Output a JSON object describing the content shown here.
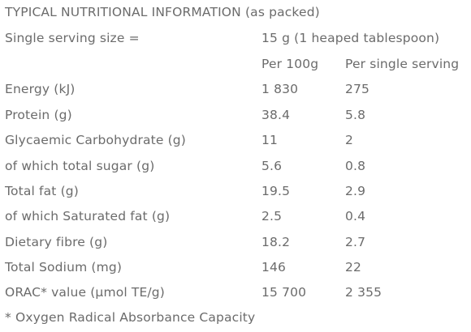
{
  "title": "TYPICAL NUTRITIONAL INFORMATION (as packed)",
  "serving": {
    "label": "Single serving size =",
    "value": "15 g (1 heaped tablespoon)"
  },
  "columns": {
    "per_100g": "Per 100g",
    "per_serving": "Per single serving"
  },
  "rows": [
    {
      "label": "Energy (kJ)",
      "per_100g": "1 830",
      "per_serving": "275"
    },
    {
      "label": "Protein (g)",
      "per_100g": "38.4",
      "per_serving": "5.8"
    },
    {
      "label": "Glycaemic Carbohydrate (g)",
      "per_100g": "11",
      "per_serving": "2"
    },
    {
      "label": "of which total sugar (g)",
      "per_100g": "5.6",
      "per_serving": "0.8"
    },
    {
      "label": "Total fat (g)",
      "per_100g": "19.5",
      "per_serving": "2.9"
    },
    {
      "label": "of which Saturated fat (g)",
      "per_100g": "2.5",
      "per_serving": "0.4"
    },
    {
      "label": "Dietary fibre (g)",
      "per_100g": "18.2",
      "per_serving": "2.7"
    },
    {
      "label": "Total Sodium (mg)",
      "per_100g": "146",
      "per_serving": "22"
    },
    {
      "label": "ORAC* value (µmol TE/g)",
      "per_100g": "15 700",
      "per_serving": "2 355"
    }
  ],
  "footnote": "* Oxygen Radical Absorbance Capacity"
}
